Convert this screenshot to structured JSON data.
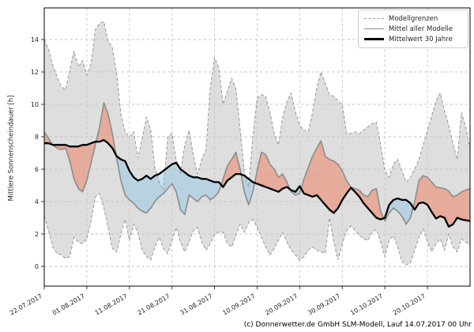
{
  "footer": "(c) Donnerwetter.de GmbH SLM-Modell, Lauf 14.07.2017 00 Uhr",
  "legend": [
    {
      "label": "Modellgrenzen",
      "style": "dashed-gray"
    },
    {
      "label": "Mittel aller Modelle",
      "style": "solid-gray"
    },
    {
      "label": "Mittelwert 30 Jahre",
      "style": "solid-black"
    }
  ],
  "axes": {
    "ylabel": "Mittlere Sonnenscheindauer [h]",
    "yticks": [
      0,
      2,
      4,
      6,
      8,
      10,
      12,
      14
    ],
    "xtick_labels": [
      "22.07.2017",
      "01.08.2017",
      "11.08.2017",
      "21.08.2017",
      "31.08.2017",
      "10.09.2017",
      "20.09.2017",
      "30.09.2017",
      "10.10.2017",
      "20.10.2017"
    ],
    "xtick_days": [
      0,
      10,
      20,
      30,
      40,
      50,
      60,
      70,
      80,
      90
    ],
    "grid": true,
    "legend_position": "upper right"
  },
  "colors": {
    "band": "#dedede",
    "bound_line": "#989898",
    "model_line": "#8c8c8c",
    "mean30_line": "#000000",
    "above_fill": "#ee7755",
    "below_fill": "#8fc6e4",
    "grid": "#c6c6c6",
    "axis_text": "#262626"
  },
  "chart_data": {
    "type": "area",
    "title": "",
    "xlabel": "",
    "ylabel": "Mittlere Sonnenscheindauer [h]",
    "x_unit": "days since 22.07.2017 (daily values, run of 14.07.2017 00 Uhr)",
    "x_start_date": "22.07.2017",
    "ylim": [
      -1.2,
      16.0
    ],
    "xlim_days": [
      0,
      100
    ],
    "x": [
      0,
      1,
      2,
      3,
      4,
      5,
      6,
      7,
      8,
      9,
      10,
      11,
      12,
      13,
      14,
      15,
      16,
      17,
      18,
      19,
      20,
      21,
      22,
      23,
      24,
      25,
      26,
      27,
      28,
      29,
      30,
      31,
      32,
      33,
      34,
      35,
      36,
      37,
      38,
      39,
      40,
      41,
      42,
      43,
      44,
      45,
      46,
      47,
      48,
      49,
      50,
      51,
      52,
      53,
      54,
      55,
      56,
      57,
      58,
      59,
      60,
      61,
      62,
      63,
      64,
      65,
      66,
      67,
      68,
      69,
      70,
      71,
      72,
      73,
      74,
      75,
      76,
      77,
      78,
      79,
      80,
      81,
      82,
      83,
      84,
      85,
      86,
      87,
      88,
      89,
      90,
      91,
      92,
      93,
      94,
      95,
      96,
      97,
      98,
      99,
      100
    ],
    "series": [
      {
        "name": "Modellgrenze oben",
        "role": "upper_bound",
        "values": [
          14.0,
          13.4,
          12.4,
          11.7,
          11.1,
          10.9,
          12.1,
          13.3,
          12.3,
          12.7,
          11.8,
          12.5,
          14.6,
          15.0,
          15.1,
          13.9,
          13.5,
          11.9,
          9.4,
          8.3,
          8.0,
          8.3,
          6.7,
          7.9,
          9.2,
          8.4,
          6.1,
          5.2,
          4.7,
          8.0,
          8.2,
          6.5,
          5.8,
          7.5,
          8.4,
          6.9,
          5.7,
          6.6,
          7.2,
          11.0,
          12.9,
          12.2,
          10.0,
          10.8,
          11.6,
          11.0,
          8.5,
          5.8,
          4.9,
          8.0,
          10.4,
          10.6,
          10.5,
          9.5,
          8.2,
          7.5,
          9.2,
          10.2,
          10.7,
          9.5,
          8.7,
          8.4,
          8.3,
          9.5,
          11.0,
          12.0,
          11.3,
          10.6,
          10.5,
          10.2,
          10.0,
          8.2,
          8.2,
          8.3,
          8.2,
          8.4,
          8.6,
          8.8,
          8.9,
          7.5,
          5.9,
          5.5,
          6.3,
          6.6,
          5.9,
          5.2,
          5.5,
          6.0,
          6.6,
          7.5,
          8.4,
          9.3,
          10.2,
          10.7,
          9.6,
          8.7,
          7.6,
          6.6,
          9.5,
          8.6,
          7.3
        ]
      },
      {
        "name": "Modellgrenze unten",
        "role": "lower_bound",
        "values": [
          3.1,
          2.2,
          1.2,
          0.8,
          0.7,
          0.5,
          0.6,
          1.8,
          1.5,
          1.4,
          1.7,
          2.8,
          4.3,
          4.5,
          3.6,
          2.4,
          1.1,
          0.9,
          2.0,
          2.9,
          1.6,
          2.6,
          2.1,
          1.0,
          0.6,
          0.4,
          1.2,
          1.8,
          1.1,
          0.8,
          1.6,
          2.4,
          1.5,
          0.9,
          1.5,
          2.2,
          2.4,
          1.5,
          1.0,
          1.4,
          2.0,
          2.1,
          2.1,
          1.4,
          1.2,
          1.9,
          2.6,
          2.1,
          2.7,
          2.9,
          2.4,
          1.8,
          1.2,
          0.7,
          1.1,
          1.6,
          2.1,
          1.5,
          1.0,
          0.7,
          0.4,
          0.6,
          1.0,
          1.2,
          1.0,
          0.9,
          0.8,
          3.0,
          1.5,
          0.4,
          1.4,
          2.2,
          2.5,
          2.2,
          1.9,
          1.7,
          1.6,
          2.1,
          2.3,
          1.5,
          0.6,
          1.6,
          1.9,
          1.2,
          0.3,
          0.1,
          0.2,
          1.0,
          1.8,
          2.3,
          1.5,
          0.9,
          1.4,
          1.7,
          1.0,
          2.0,
          1.2,
          0.9,
          1.7,
          1.5,
          1.3
        ]
      },
      {
        "name": "Mittel aller Modelle",
        "role": "model_mean",
        "values": [
          8.3,
          7.9,
          7.5,
          7.3,
          7.2,
          7.3,
          6.5,
          5.4,
          4.8,
          4.6,
          5.3,
          6.4,
          7.5,
          8.6,
          10.1,
          9.4,
          8.2,
          6.7,
          5.3,
          4.4,
          4.1,
          3.9,
          3.6,
          3.4,
          3.3,
          3.6,
          4.0,
          4.3,
          4.5,
          4.8,
          5.1,
          4.6,
          3.5,
          3.2,
          4.4,
          4.2,
          4.0,
          4.3,
          4.4,
          4.1,
          4.3,
          4.6,
          5.4,
          6.2,
          6.6,
          7.05,
          6.0,
          4.6,
          3.8,
          4.6,
          5.9,
          7.05,
          6.9,
          6.3,
          6.0,
          5.5,
          5.7,
          5.2,
          4.6,
          4.4,
          4.5,
          5.4,
          6.1,
          6.8,
          7.3,
          7.75,
          6.8,
          6.6,
          6.5,
          6.3,
          5.9,
          5.3,
          4.9,
          4.8,
          4.7,
          4.4,
          4.3,
          4.7,
          4.8,
          3.4,
          2.8,
          3.3,
          3.6,
          3.4,
          3.1,
          2.6,
          3.0,
          4.0,
          5.3,
          5.6,
          5.5,
          5.2,
          4.9,
          4.85,
          4.8,
          4.65,
          4.3,
          4.4,
          4.6,
          4.7,
          4.8
        ]
      },
      {
        "name": "Mittelwert 30 Jahre",
        "role": "climate_mean",
        "values": [
          7.6,
          7.6,
          7.5,
          7.5,
          7.5,
          7.5,
          7.4,
          7.4,
          7.4,
          7.5,
          7.5,
          7.6,
          7.7,
          7.7,
          7.8,
          7.6,
          7.3,
          6.8,
          6.6,
          6.5,
          5.9,
          5.5,
          5.3,
          5.4,
          5.6,
          5.4,
          5.6,
          5.7,
          5.9,
          6.1,
          6.3,
          6.4,
          6.0,
          5.8,
          5.6,
          5.5,
          5.5,
          5.4,
          5.4,
          5.3,
          5.2,
          5.2,
          4.9,
          5.3,
          5.5,
          5.7,
          5.7,
          5.6,
          5.4,
          5.2,
          5.1,
          5.0,
          4.9,
          4.8,
          4.7,
          4.6,
          4.8,
          4.9,
          4.7,
          4.6,
          4.95,
          4.5,
          4.4,
          4.3,
          4.4,
          4.1,
          3.8,
          3.5,
          3.3,
          3.6,
          4.1,
          4.5,
          4.85,
          4.6,
          4.3,
          3.9,
          3.6,
          3.3,
          3.0,
          2.9,
          3.0,
          3.8,
          4.1,
          4.2,
          4.1,
          4.1,
          3.9,
          3.5,
          3.9,
          3.95,
          3.8,
          3.35,
          2.95,
          3.1,
          3.0,
          2.45,
          2.6,
          3.0,
          2.9,
          2.85,
          2.8
        ]
      }
    ],
    "fills": {
      "band_between": [
        "Modellgrenze oben",
        "Modellgrenze unten"
      ],
      "red_where": "Mittel aller Modelle > Mittelwert 30 Jahre",
      "blue_where": "Mittel aller Modelle < Mittelwert 30 Jahre"
    }
  }
}
